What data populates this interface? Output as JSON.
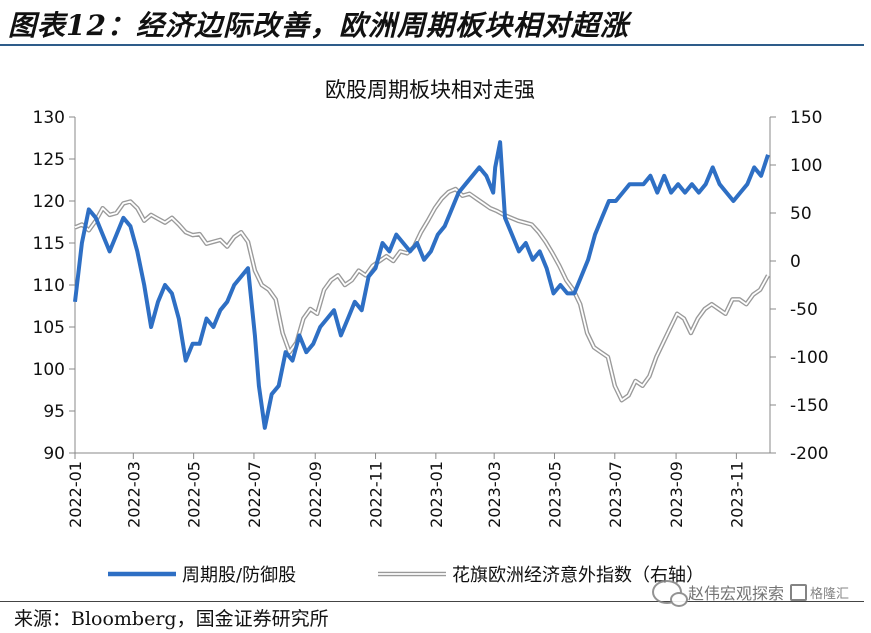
{
  "figure": {
    "title": "图表12：经济边际改善，欧洲周期板块相对超涨",
    "source": "来源：Bloomberg，国金证券研究所",
    "watermark": "赵伟宏观探索",
    "watermark_brand": "格隆汇",
    "watermark_icon": "wechat-icon"
  },
  "chart_data": {
    "type": "line",
    "title": "欧股周期板块相对走强",
    "x_ticks": [
      "2022-01",
      "2022-03",
      "2022-05",
      "2022-07",
      "2022-09",
      "2022-11",
      "2023-01",
      "2023-03",
      "2023-05",
      "2023-07",
      "2023-09",
      "2023-11"
    ],
    "xlim": [
      "2022-01-01",
      "2023-12-05"
    ],
    "y_left": {
      "lim": [
        90,
        130
      ],
      "ticks": [
        90,
        95,
        100,
        105,
        110,
        115,
        120,
        125,
        130
      ]
    },
    "y_right": {
      "lim": [
        -200,
        150
      ],
      "ticks": [
        -200,
        -150,
        -100,
        -50,
        0,
        50,
        100,
        150
      ]
    },
    "grid": false,
    "legend_position": "bottom",
    "series": [
      {
        "name": "周期股/防御股",
        "axis": "left",
        "color": "#2e6fc4",
        "x": [
          "2022-01-01",
          "2022-01-08",
          "2022-01-15",
          "2022-01-22",
          "2022-01-29",
          "2022-02-05",
          "2022-02-12",
          "2022-02-19",
          "2022-02-26",
          "2022-03-05",
          "2022-03-12",
          "2022-03-19",
          "2022-03-26",
          "2022-04-02",
          "2022-04-09",
          "2022-04-16",
          "2022-04-23",
          "2022-04-30",
          "2022-05-07",
          "2022-05-14",
          "2022-05-21",
          "2022-05-28",
          "2022-06-04",
          "2022-06-11",
          "2022-06-18",
          "2022-06-25",
          "2022-07-02",
          "2022-07-06",
          "2022-07-12",
          "2022-07-19",
          "2022-07-26",
          "2022-08-02",
          "2022-08-09",
          "2022-08-16",
          "2022-08-23",
          "2022-08-30",
          "2022-09-06",
          "2022-09-13",
          "2022-09-20",
          "2022-09-27",
          "2022-10-04",
          "2022-10-11",
          "2022-10-18",
          "2022-10-25",
          "2022-11-01",
          "2022-11-08",
          "2022-11-15",
          "2022-11-22",
          "2022-11-29",
          "2022-12-06",
          "2022-12-13",
          "2022-12-20",
          "2022-12-27",
          "2023-01-03",
          "2023-01-10",
          "2023-01-17",
          "2023-01-24",
          "2023-01-31",
          "2023-02-07",
          "2023-02-14",
          "2023-02-21",
          "2023-02-28",
          "2023-03-02",
          "2023-03-07",
          "2023-03-12",
          "2023-03-19",
          "2023-03-26",
          "2023-04-02",
          "2023-04-09",
          "2023-04-16",
          "2023-04-23",
          "2023-04-30",
          "2023-05-07",
          "2023-05-14",
          "2023-05-21",
          "2023-05-28",
          "2023-06-04",
          "2023-06-11",
          "2023-06-18",
          "2023-06-25",
          "2023-07-02",
          "2023-07-09",
          "2023-07-16",
          "2023-07-23",
          "2023-07-30",
          "2023-08-06",
          "2023-08-13",
          "2023-08-20",
          "2023-08-27",
          "2023-09-03",
          "2023-09-10",
          "2023-09-17",
          "2023-09-24",
          "2023-10-01",
          "2023-10-08",
          "2023-10-15",
          "2023-10-22",
          "2023-10-29",
          "2023-11-05",
          "2023-11-12",
          "2023-11-19",
          "2023-11-26",
          "2023-12-03"
        ],
        "values": [
          108,
          115,
          119,
          118,
          116,
          114,
          116,
          118,
          117,
          114,
          110,
          105,
          108,
          110,
          109,
          106,
          101,
          103,
          103,
          106,
          105,
          107,
          108,
          110,
          111,
          112,
          104,
          98,
          93,
          97,
          98,
          102,
          101,
          104,
          102,
          103,
          105,
          106,
          107,
          104,
          106,
          108,
          107,
          111,
          112,
          115,
          114,
          116,
          115,
          114,
          115,
          113,
          114,
          116,
          117,
          119,
          121,
          122,
          123,
          124,
          123,
          121,
          124,
          127,
          118,
          116,
          114,
          115,
          113,
          114,
          112,
          109,
          110,
          109,
          109,
          111,
          113,
          116,
          118,
          120,
          120,
          121,
          122,
          122,
          122,
          123,
          121,
          123,
          121,
          122,
          121,
          122,
          121,
          122,
          124,
          122,
          121,
          120,
          121,
          122,
          124,
          123,
          125.5
        ]
      },
      {
        "name": "花旗欧洲经济意外指数（右轴）",
        "axis": "right",
        "color": "#b8b8b8",
        "x": [
          "2022-01-01",
          "2022-01-08",
          "2022-01-15",
          "2022-01-22",
          "2022-01-29",
          "2022-02-05",
          "2022-02-12",
          "2022-02-19",
          "2022-02-26",
          "2022-03-05",
          "2022-03-12",
          "2022-03-19",
          "2022-03-26",
          "2022-04-02",
          "2022-04-09",
          "2022-04-16",
          "2022-04-23",
          "2022-04-30",
          "2022-05-07",
          "2022-05-14",
          "2022-05-21",
          "2022-05-28",
          "2022-06-04",
          "2022-06-11",
          "2022-06-18",
          "2022-06-25",
          "2022-07-02",
          "2022-07-09",
          "2022-07-16",
          "2022-07-23",
          "2022-07-30",
          "2022-08-06",
          "2022-08-13",
          "2022-08-20",
          "2022-08-27",
          "2022-09-03",
          "2022-09-10",
          "2022-09-17",
          "2022-09-24",
          "2022-10-01",
          "2022-10-08",
          "2022-10-15",
          "2022-10-22",
          "2022-10-29",
          "2022-11-05",
          "2022-11-12",
          "2022-11-19",
          "2022-11-26",
          "2022-12-03",
          "2022-12-10",
          "2022-12-17",
          "2022-12-24",
          "2022-12-31",
          "2023-01-07",
          "2023-01-14",
          "2023-01-21",
          "2023-01-28",
          "2023-02-04",
          "2023-02-11",
          "2023-02-18",
          "2023-02-25",
          "2023-03-04",
          "2023-03-11",
          "2023-03-18",
          "2023-03-25",
          "2023-04-01",
          "2023-04-08",
          "2023-04-15",
          "2023-04-22",
          "2023-04-29",
          "2023-05-06",
          "2023-05-13",
          "2023-05-20",
          "2023-05-27",
          "2023-06-03",
          "2023-06-10",
          "2023-06-17",
          "2023-06-24",
          "2023-07-01",
          "2023-07-08",
          "2023-07-15",
          "2023-07-22",
          "2023-07-29",
          "2023-08-05",
          "2023-08-12",
          "2023-08-19",
          "2023-08-26",
          "2023-09-02",
          "2023-09-09",
          "2023-09-16",
          "2023-09-23",
          "2023-09-30",
          "2023-10-07",
          "2023-10-14",
          "2023-10-21",
          "2023-10-28",
          "2023-11-04",
          "2023-11-11",
          "2023-11-18",
          "2023-11-25",
          "2023-12-03"
        ],
        "values": [
          35,
          38,
          32,
          42,
          55,
          48,
          50,
          60,
          62,
          55,
          42,
          48,
          44,
          40,
          45,
          38,
          30,
          27,
          28,
          18,
          20,
          22,
          15,
          25,
          30,
          20,
          -10,
          -25,
          -30,
          -40,
          -75,
          -95,
          -85,
          -60,
          -50,
          -55,
          -30,
          -20,
          -15,
          -25,
          -20,
          -10,
          -15,
          -5,
          0,
          5,
          0,
          10,
          8,
          15,
          30,
          42,
          55,
          65,
          72,
          75,
          68,
          70,
          65,
          60,
          55,
          52,
          48,
          45,
          42,
          40,
          38,
          30,
          20,
          8,
          -5,
          -20,
          -30,
          -45,
          -75,
          -90,
          -95,
          -100,
          -130,
          -145,
          -140,
          -125,
          -130,
          -120,
          -100,
          -85,
          -70,
          -55,
          -60,
          -75,
          -60,
          -50,
          -45,
          -50,
          -55,
          -40,
          -40,
          -45,
          -35,
          -30,
          -15
        ]
      }
    ]
  }
}
